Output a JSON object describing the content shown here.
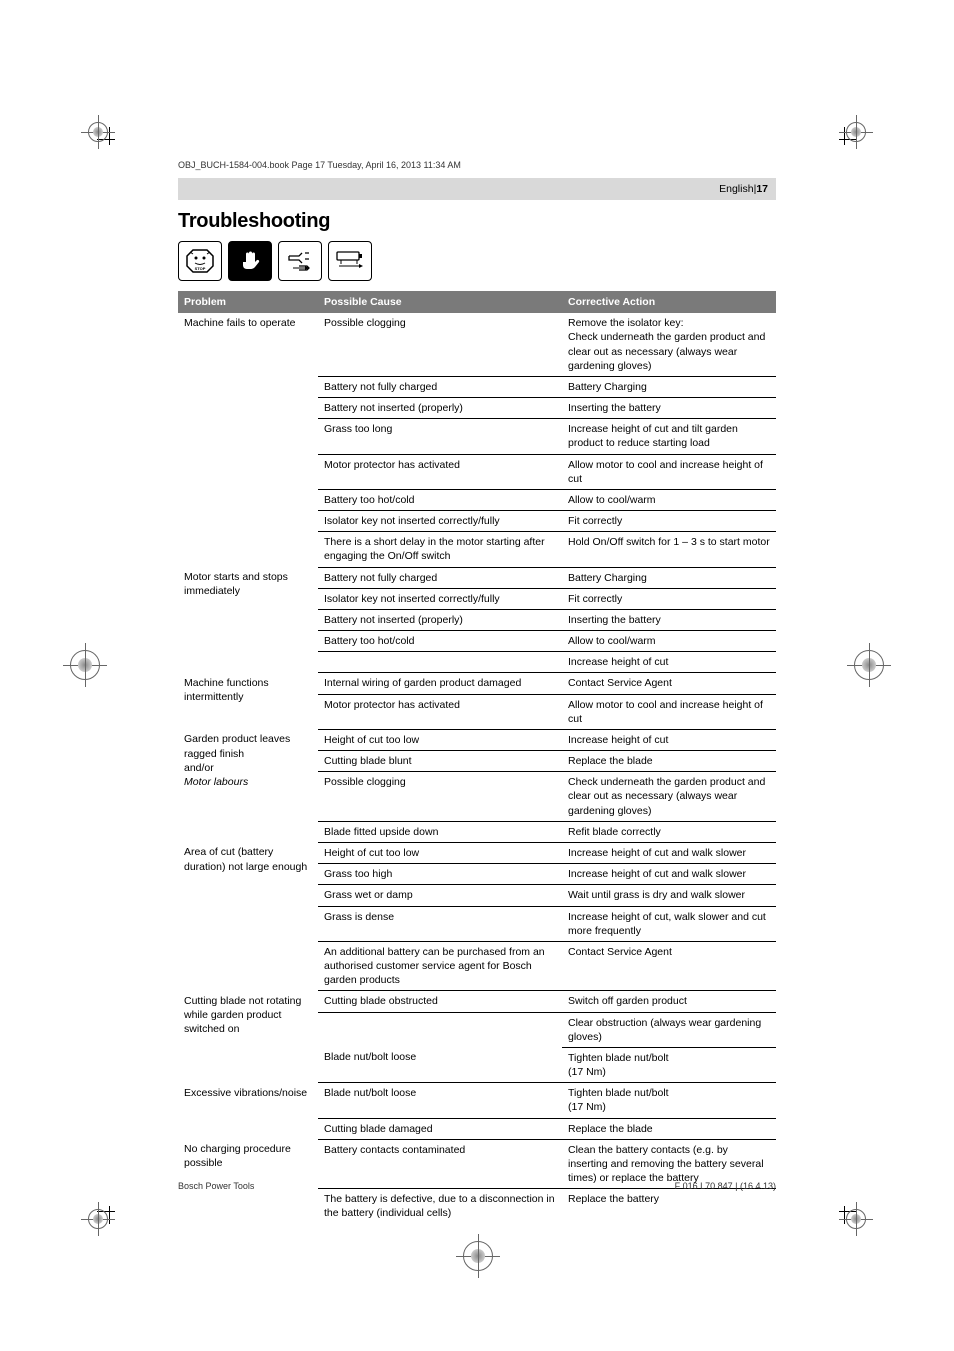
{
  "header_line": "OBJ_BUCH-1584-004.book  Page 17  Tuesday, April 16, 2013  11:34 AM",
  "lang": "English",
  "pagebar_sep": " | ",
  "pagenum": "17",
  "title": "Troubleshooting",
  "icons": [
    "stop-icon",
    "hand-icon",
    "plug-icon",
    "battery-icon"
  ],
  "col": {
    "problem": "Problem",
    "cause": "Possible Cause",
    "action": "Corrective Action"
  },
  "groups": [
    {
      "problem": "Machine fails to operate",
      "rows": [
        {
          "cause": "Possible clogging",
          "action": "Remove the isolator key:\nCheck underneath the garden product and clear out as necessary (always wear gardening gloves)"
        },
        {
          "cause": "Battery not fully charged",
          "action": "Battery Charging"
        },
        {
          "cause": "Battery not inserted (properly)",
          "action": "Inserting the battery"
        },
        {
          "cause": "Grass too long",
          "action": "Increase height of cut and tilt garden product to reduce starting load"
        },
        {
          "cause": "Motor protector has activated",
          "action": "Allow motor to cool and increase height of cut"
        },
        {
          "cause": "Battery too hot/cold",
          "action": "Allow to cool/warm"
        },
        {
          "cause": "Isolator key not inserted correctly/fully",
          "action": "Fit correctly"
        },
        {
          "cause": "There is a short delay in the motor starting after engaging the On/Off switch",
          "action": "Hold On/Off switch for 1 – 3 s to start motor"
        }
      ]
    },
    {
      "problem": "Motor starts and stops immediately",
      "rows": [
        {
          "cause": "Battery not fully charged",
          "action": "Battery Charging"
        },
        {
          "cause": "Isolator key not inserted correctly/fully",
          "action": "Fit correctly"
        },
        {
          "cause": "Battery not inserted (properly)",
          "action": "Inserting the battery"
        },
        {
          "cause": "Battery too hot/cold",
          "action": "Allow to cool/warm"
        },
        {
          "cause": "",
          "action": "Increase height of cut"
        }
      ]
    },
    {
      "problem": "Machine functions intermittently",
      "rows": [
        {
          "cause": "Internal wiring of garden product damaged",
          "action": "Contact Service Agent"
        },
        {
          "cause": "Motor protector has activated",
          "action": "Allow motor to cool and increase height of cut"
        }
      ]
    },
    {
      "problem": "Garden product leaves ragged finish\nand/or\nMotor labours",
      "italics": [
        2
      ],
      "rows": [
        {
          "cause": "Height of cut too low",
          "action": "Increase height of cut"
        },
        {
          "cause": "Cutting blade blunt",
          "action": "Replace the blade"
        },
        {
          "cause": "Possible clogging",
          "action": "Check underneath the garden product and clear out as necessary (always wear gardening gloves)"
        },
        {
          "cause": "Blade fitted upside down",
          "action": "Refit blade correctly"
        }
      ]
    },
    {
      "problem": "Area of cut (battery duration) not large enough",
      "rows": [
        {
          "cause": "Height of cut too low",
          "action": "Increase height of cut and walk slower"
        },
        {
          "cause": "Grass too high",
          "action": "Increase height of cut and walk slower"
        },
        {
          "cause": "Grass wet or damp",
          "action": "Wait until grass is dry and walk slower"
        },
        {
          "cause": "Grass is dense",
          "action": "Increase height of cut, walk slower and cut more frequently"
        },
        {
          "cause": "An additional battery can be purchased from an authorised customer service agent for Bosch garden products",
          "action": "Contact Service Agent"
        }
      ]
    },
    {
      "problem": "Cutting blade not rotating while garden product switched on",
      "rows": [
        {
          "cause": "Cutting blade obstructed",
          "action": "Switch off garden product"
        },
        {
          "cause": "",
          "action": "Clear obstruction (always wear gardening gloves)"
        },
        {
          "cause": "Blade nut/bolt loose",
          "action": "Tighten blade nut/bolt\n(17 Nm)"
        }
      ]
    },
    {
      "problem": "Excessive vibrations/noise",
      "rows": [
        {
          "cause": "Blade nut/bolt loose",
          "action": "Tighten blade nut/bolt\n(17 Nm)"
        },
        {
          "cause": "Cutting blade damaged",
          "action": "Replace the blade"
        }
      ]
    },
    {
      "problem": "No charging procedure possible",
      "rows": [
        {
          "cause": "Battery contacts contaminated",
          "action": "Clean the battery contacts (e.g. by inserting and removing the battery several times) or replace the battery"
        },
        {
          "cause": "The battery is defective, due to a disconnection in the battery (individual cells)",
          "action": "Replace the battery"
        }
      ]
    }
  ],
  "footer_left": "Bosch Power Tools",
  "footer_right": "F 016 L70 847 | (16.4.13)"
}
